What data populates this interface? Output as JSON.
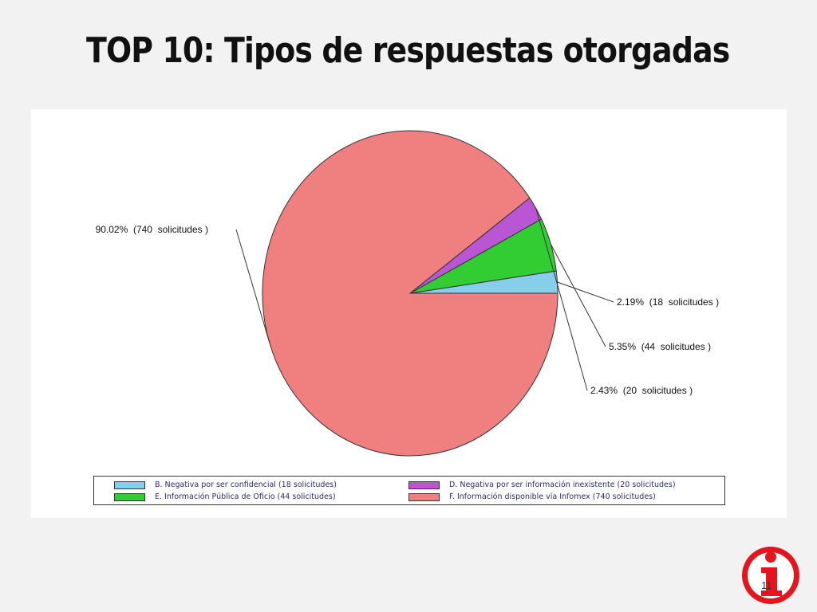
{
  "slide": {
    "title": "TOP 10:  Tipos de respuestas otorgadas",
    "page_number": "11"
  },
  "colors": {
    "background": "#f2f2f2",
    "panel": "#ffffff",
    "badge_red": "#e4161d"
  },
  "icons": {
    "badge": "info-i-badge-icon"
  },
  "chart_data": {
    "type": "pie",
    "title": "",
    "start_direction": "3-o'clock",
    "order": "counterclockwise",
    "slices": [
      {
        "key": "B",
        "label": "2.19%  (18  solicitudes )",
        "legend": "B. Negativa por ser confidencial (18  solicitudes)",
        "value": 18,
        "percent": 2.19,
        "color": "#87ceeb"
      },
      {
        "key": "E",
        "label": "5.35%  (44  solicitudes )",
        "legend": "E. Información Pública de Oficio (44  solicitudes)",
        "value": 44,
        "percent": 5.35,
        "color": "#32cd32"
      },
      {
        "key": "D",
        "label": "2.43%  (20  solicitudes )",
        "legend": "D. Negativa por ser información inexistente (20  solicitudes)",
        "value": 20,
        "percent": 2.43,
        "color": "#ba55d3"
      },
      {
        "key": "F",
        "label": "90.02%  (740  solicitudes )",
        "legend": "F. Información disponible vía Infomex (740  solicitudes)",
        "value": 740,
        "percent": 90.02,
        "color": "#f08080"
      }
    ],
    "legend_position": "bottom"
  }
}
